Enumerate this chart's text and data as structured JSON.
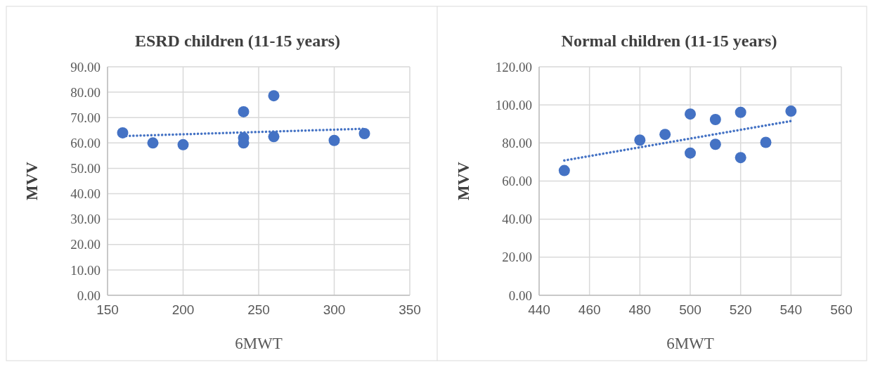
{
  "chart_data": [
    {
      "type": "scatter",
      "title": "ESRD children (11-15 years)",
      "xlabel": "6MWT",
      "ylabel": "MVV",
      "xlim": [
        150,
        350
      ],
      "xticks": [
        150,
        200,
        250,
        300,
        350
      ],
      "ylim": [
        0,
        90
      ],
      "yticks": [
        {
          "value": 0,
          "label": "0.00"
        },
        {
          "value": 10,
          "label": "10.00"
        },
        {
          "value": 20,
          "label": "20.00"
        },
        {
          "value": 30,
          "label": "30.00"
        },
        {
          "value": 40,
          "label": "40.00"
        },
        {
          "value": 50,
          "label": "50.00"
        },
        {
          "value": 60,
          "label": "60.00"
        },
        {
          "value": 70,
          "label": "70.00"
        },
        {
          "value": 80,
          "label": "80.00"
        },
        {
          "value": 90,
          "label": "90.00"
        }
      ],
      "grid": true,
      "series": [
        {
          "marker": "circle",
          "color": "#4472c4",
          "x": [
            160,
            180,
            200,
            240,
            240,
            240,
            260,
            260,
            300,
            320
          ],
          "values": [
            64.0,
            60.0,
            59.3,
            72.3,
            62.0,
            60.0,
            78.6,
            62.5,
            61.0,
            63.7
          ]
        },
        {
          "type": "line",
          "color": "#4472c4",
          "line_style": "dotted",
          "x": [
            160,
            320
          ],
          "values": [
            62.7,
            65.6
          ]
        }
      ]
    },
    {
      "type": "scatter",
      "title": "Normal children (11-15 years)",
      "xlabel": "6MWT",
      "ylabel": "MVV",
      "xlim": [
        440,
        560
      ],
      "xticks": [
        440,
        460,
        480,
        500,
        520,
        540,
        560
      ],
      "ylim": [
        0,
        120
      ],
      "yticks": [
        {
          "value": 0,
          "label": "0.00"
        },
        {
          "value": 20,
          "label": "20.00"
        },
        {
          "value": 40,
          "label": "40.00"
        },
        {
          "value": 60,
          "label": "60.00"
        },
        {
          "value": 80,
          "label": "80.00"
        },
        {
          "value": 100,
          "label": "100.00"
        },
        {
          "value": 120,
          "label": "120.00"
        }
      ],
      "grid": true,
      "series": [
        {
          "marker": "circle",
          "color": "#4472c4",
          "x": [
            450,
            480,
            490,
            500,
            500,
            510,
            510,
            520,
            520,
            530,
            540
          ],
          "values": [
            65.5,
            81.5,
            84.5,
            95.2,
            74.7,
            92.3,
            79.3,
            96.1,
            72.3,
            80.3,
            96.7
          ]
        },
        {
          "type": "line",
          "color": "#4472c4",
          "line_style": "dotted",
          "x": [
            450,
            540
          ],
          "values": [
            70.8,
            91.5
          ]
        }
      ]
    }
  ]
}
